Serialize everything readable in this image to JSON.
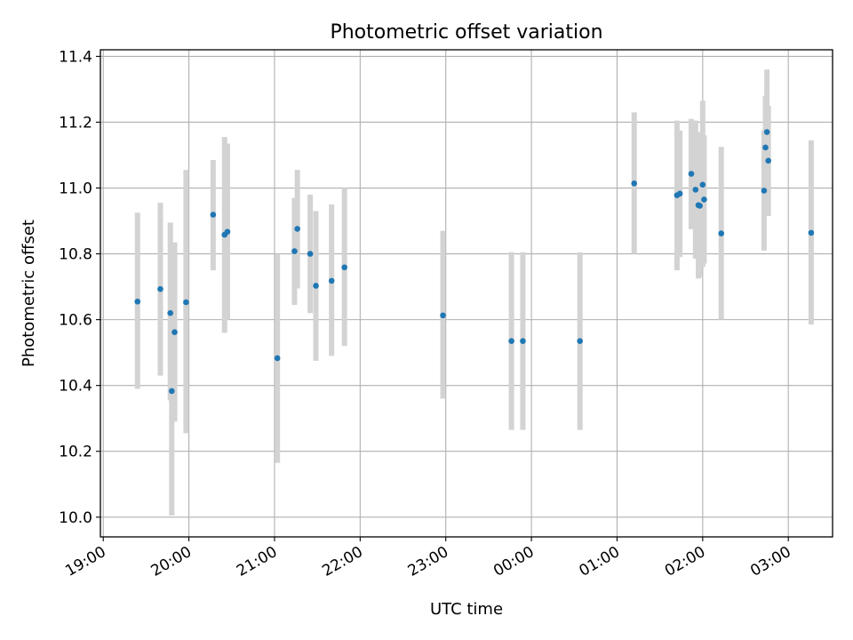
{
  "chart_data": {
    "type": "scatter",
    "title": "Photometric offset variation",
    "xlabel": "UTC time",
    "ylabel": "Photometric offset",
    "xlim": [
      "18:58",
      "03:31"
    ],
    "ylim": [
      9.94,
      11.42
    ],
    "grid": true,
    "x_ticks": [
      "19:00",
      "20:00",
      "21:00",
      "22:00",
      "23:00",
      "00:00",
      "01:00",
      "02:00",
      "03:00"
    ],
    "y_ticks": [
      "10.0",
      "10.2",
      "10.4",
      "10.6",
      "10.8",
      "11.0",
      "11.2",
      "11.4"
    ],
    "colors": {
      "marker": "#1f77b4",
      "errorbar": "#d3d3d3"
    },
    "series": [
      {
        "points": [
          {
            "t": "19:24",
            "y": 10.655,
            "lo": 10.39,
            "hi": 10.925
          },
          {
            "t": "19:40",
            "y": 10.693,
            "lo": 10.43,
            "hi": 10.955
          },
          {
            "t": "19:47",
            "y": 10.62,
            "lo": 10.355,
            "hi": 10.895
          },
          {
            "t": "19:48",
            "y": 10.383,
            "lo": 10.005,
            "hi": 10.76
          },
          {
            "t": "19:50",
            "y": 10.562,
            "lo": 10.29,
            "hi": 10.835
          },
          {
            "t": "19:58",
            "y": 10.653,
            "lo": 10.255,
            "hi": 11.055
          },
          {
            "t": "20:17",
            "y": 10.919,
            "lo": 10.75,
            "hi": 11.085
          },
          {
            "t": "20:25",
            "y": 10.858,
            "lo": 10.56,
            "hi": 11.155
          },
          {
            "t": "20:27",
            "y": 10.867,
            "lo": 10.6,
            "hi": 11.135
          },
          {
            "t": "21:02",
            "y": 10.483,
            "lo": 10.165,
            "hi": 10.8
          },
          {
            "t": "21:14",
            "y": 10.808,
            "lo": 10.645,
            "hi": 10.97
          },
          {
            "t": "21:16",
            "y": 10.876,
            "lo": 10.695,
            "hi": 11.055
          },
          {
            "t": "21:25",
            "y": 10.8,
            "lo": 10.62,
            "hi": 10.98
          },
          {
            "t": "21:29",
            "y": 10.703,
            "lo": 10.475,
            "hi": 10.93
          },
          {
            "t": "21:40",
            "y": 10.718,
            "lo": 10.49,
            "hi": 10.95
          },
          {
            "t": "21:49",
            "y": 10.759,
            "lo": 10.52,
            "hi": 11.0
          },
          {
            "t": "22:58",
            "y": 10.613,
            "lo": 10.36,
            "hi": 10.87
          },
          {
            "t": "23:46",
            "y": 10.535,
            "lo": 10.265,
            "hi": 10.805
          },
          {
            "t": "23:54",
            "y": 10.535,
            "lo": 10.265,
            "hi": 10.805
          },
          {
            "t": "00:34",
            "y": 10.535,
            "lo": 10.265,
            "hi": 10.805
          },
          {
            "t": "01:12",
            "y": 11.014,
            "lo": 10.8,
            "hi": 11.23
          },
          {
            "t": "01:42",
            "y": 10.978,
            "lo": 10.75,
            "hi": 11.205
          },
          {
            "t": "01:44",
            "y": 10.983,
            "lo": 10.79,
            "hi": 11.175
          },
          {
            "t": "01:52",
            "y": 11.043,
            "lo": 10.875,
            "hi": 11.21
          },
          {
            "t": "01:55",
            "y": 10.995,
            "lo": 10.785,
            "hi": 11.205
          },
          {
            "t": "01:57",
            "y": 10.948,
            "lo": 10.725,
            "hi": 11.17
          },
          {
            "t": "01:58",
            "y": 10.946,
            "lo": 10.73,
            "hi": 11.16
          },
          {
            "t": "02:00",
            "y": 11.01,
            "lo": 10.76,
            "hi": 11.265
          },
          {
            "t": "02:01",
            "y": 10.965,
            "lo": 10.77,
            "hi": 11.16
          },
          {
            "t": "02:13",
            "y": 10.862,
            "lo": 10.6,
            "hi": 11.125
          },
          {
            "t": "02:43",
            "y": 10.992,
            "lo": 10.81,
            "hi": 11.175
          },
          {
            "t": "02:44",
            "y": 11.123,
            "lo": 10.97,
            "hi": 11.28
          },
          {
            "t": "02:45",
            "y": 11.17,
            "lo": 10.985,
            "hi": 11.36
          },
          {
            "t": "02:46",
            "y": 11.083,
            "lo": 10.915,
            "hi": 11.25
          },
          {
            "t": "03:16",
            "y": 10.864,
            "lo": 10.585,
            "hi": 11.145
          }
        ]
      }
    ]
  }
}
